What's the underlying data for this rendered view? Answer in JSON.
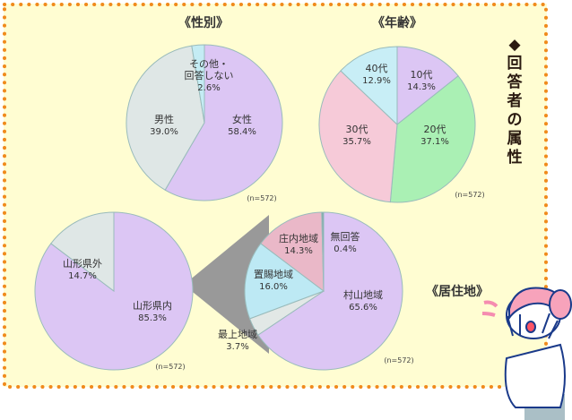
{
  "side_title": "◆回答者の属性",
  "chart_data": [
    {
      "type": "pie",
      "title": "《性別》",
      "note": "(n=572)",
      "slices": [
        {
          "label": "女性",
          "value": 58.4,
          "text": "58.4%",
          "color": "#dcc6f4"
        },
        {
          "label": "男性",
          "value": 39.0,
          "text": "39.0%",
          "color": "#dfe7e6"
        },
        {
          "label": "その他・回答しない",
          "value": 2.6,
          "text": "2.6%",
          "color": "#c4ecf4"
        }
      ]
    },
    {
      "type": "pie",
      "title": "《年齢》",
      "note": "(n=572)",
      "slices": [
        {
          "label": "10代",
          "value": 14.3,
          "text": "14.3%",
          "color": "#dcc6f4"
        },
        {
          "label": "20代",
          "value": 37.1,
          "text": "37.1%",
          "color": "#aaf0b4"
        },
        {
          "label": "30代",
          "value": 35.7,
          "text": "35.7%",
          "color": "#f6cad8"
        },
        {
          "label": "40代",
          "value": 12.9,
          "text": "12.9%",
          "color": "#c8eef6"
        }
      ]
    },
    {
      "type": "pie",
      "title": "《居住地》",
      "note": "(n=572)",
      "slices": [
        {
          "label": "山形県内",
          "value": 85.3,
          "text": "85.3%",
          "color": "#dcc6f4"
        },
        {
          "label": "山形県外",
          "value": 14.7,
          "text": "14.7%",
          "color": "#dfe7e6"
        }
      ]
    },
    {
      "type": "pie",
      "note": "(n=572)",
      "slices": [
        {
          "label": "村山地域",
          "value": 65.6,
          "text": "65.6%",
          "color": "#dcc6f4"
        },
        {
          "label": "最上地域",
          "value": 3.7,
          "text": "3.7%",
          "color": "#e2e8e6"
        },
        {
          "label": "置賜地域",
          "value": 16.0,
          "text": "16.0%",
          "color": "#bde9f4"
        },
        {
          "label": "庄内地域",
          "value": 14.3,
          "text": "14.3%",
          "color": "#eab8c8"
        },
        {
          "label": "無回答",
          "value": 0.4,
          "text": "0.4%",
          "color": "#7aa8a8"
        }
      ]
    }
  ]
}
